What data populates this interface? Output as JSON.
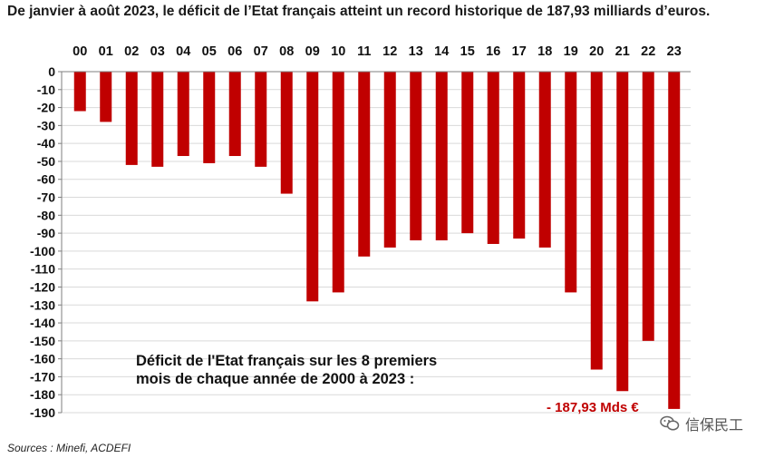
{
  "headline": "De janvier à août 2023, le déficit de l’Etat français atteint un record historique de 187,93 milliards d’euros.",
  "annotation": {
    "line1": "Déficit de l'Etat français sur les 8 premiers",
    "line2": "mois de chaque année de 2000 à 2023 :"
  },
  "total_label": "- 187,93 Mds €",
  "source": "Sources : Minefi, ACDEFI",
  "watermark": "信保民工",
  "colors": {
    "bar": "#c00000",
    "grid": "#d9d9d9",
    "axis": "#7f7f7f"
  },
  "chart_data": {
    "type": "bar",
    "categories": [
      "00",
      "01",
      "02",
      "03",
      "04",
      "05",
      "06",
      "07",
      "08",
      "09",
      "10",
      "11",
      "12",
      "13",
      "14",
      "15",
      "16",
      "17",
      "18",
      "19",
      "20",
      "21",
      "22",
      "23"
    ],
    "values": [
      -22,
      -28,
      -52,
      -53,
      -47,
      -51,
      -47,
      -53,
      -68,
      -128,
      -123,
      -103,
      -98,
      -94,
      -94,
      -90,
      -96,
      -93,
      -98,
      -123,
      -166,
      -178,
      -150,
      -187.93
    ],
    "ylim": [
      -190,
      0
    ],
    "yticks": [
      0,
      -10,
      -20,
      -30,
      -40,
      -50,
      -60,
      -70,
      -80,
      -90,
      -100,
      -110,
      -120,
      -130,
      -140,
      -150,
      -160,
      -170,
      -180,
      -190
    ],
    "grid": true,
    "xaxis_position": "top",
    "legend": "none"
  }
}
